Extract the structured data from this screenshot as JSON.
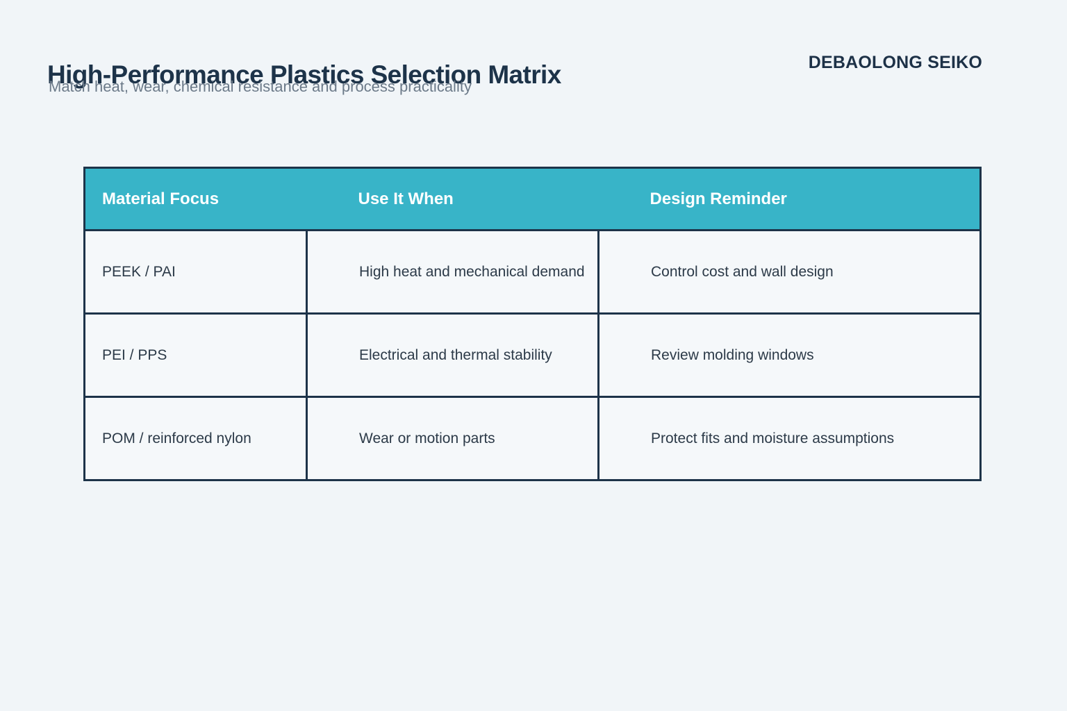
{
  "page": {
    "title": "High-Performance Plastics Selection Matrix",
    "subtitle": "Match heat, wear, chemical resistance and process practicality",
    "brand": "DEBAOLONG SEIKO",
    "background_color": "#f1f5f8"
  },
  "theme": {
    "accent_teal": "#38b4c8",
    "navy": "#1d3349",
    "body_text": "#2c3a48",
    "muted_text": "#6c7a89",
    "header_text": "#ffffff"
  },
  "table": {
    "columns": [
      {
        "label": "Material Focus"
      },
      {
        "label": "Use It When"
      },
      {
        "label": "Design Reminder"
      }
    ],
    "rows": [
      {
        "material": "PEEK / PAI",
        "use_when": "High heat and mechanical demand",
        "reminder": "Control cost and wall design"
      },
      {
        "material": "PEI / PPS",
        "use_when": "Electrical and thermal stability",
        "reminder": "Review molding windows"
      },
      {
        "material": "POM / reinforced nylon",
        "use_when": "Wear or motion parts",
        "reminder": "Protect fits and moisture assumptions"
      }
    ]
  }
}
